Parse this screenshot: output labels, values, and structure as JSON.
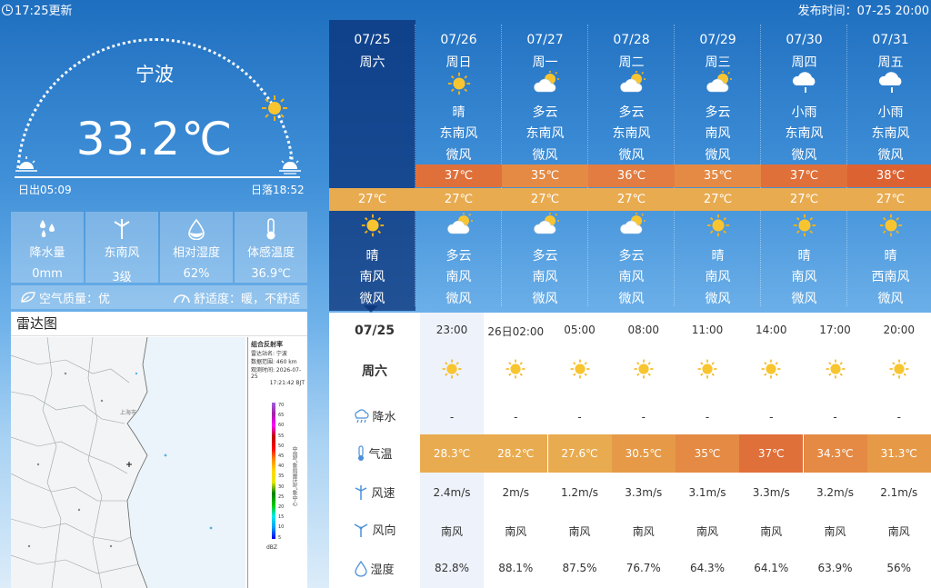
{
  "header": {
    "update_time": "17:25更新",
    "publish_time": "发布时间：07-25 20:00"
  },
  "current": {
    "city": "宁波",
    "temperature": "33.2℃",
    "sunrise": "日出05:09",
    "sunset": "日落18:52",
    "stats": [
      {
        "icon": "raindrops-icon",
        "label": "降水量",
        "value": "0mm"
      },
      {
        "icon": "wind-turbine-icon",
        "label": "东南风",
        "value": "3级"
      },
      {
        "icon": "humidity-drop-icon",
        "label": "相对湿度",
        "value": "62%"
      },
      {
        "icon": "thermometer-icon",
        "label": "体感温度",
        "value": "36.9℃"
      }
    ],
    "air_quality": "空气质量：优",
    "comfort": "舒适度：暖，不舒适"
  },
  "radar": {
    "title": "雷达图",
    "legend_title": "组合反射率",
    "station": "雷达站名:    宁波",
    "range": "数据范围:    460 km",
    "obs_time": "观测时间:    2026-07-25",
    "obs_time2": "17:21:42 BJT",
    "unit": "dBZ",
    "scale": [
      "70",
      "65",
      "60",
      "55",
      "50",
      "45",
      "40",
      "35",
      "30",
      "25",
      "20",
      "15",
      "10",
      "5"
    ],
    "vertical_note": "中国气象局雷达气象中心",
    "map_city": "上海市"
  },
  "daily": [
    {
      "date": "07/25",
      "weekday": "周六",
      "day_icon": "sunny-icon",
      "day_weather": "",
      "day_wind_dir": "",
      "day_wind_level": "",
      "high": "",
      "low": "27℃",
      "night_icon": "sunny-icon",
      "night_weather": "晴",
      "night_wind_dir": "南风",
      "night_wind_level": "微风",
      "today": true
    },
    {
      "date": "07/26",
      "weekday": "周日",
      "day_icon": "sunny-icon",
      "day_weather": "晴",
      "day_wind_dir": "东南风",
      "day_wind_level": "微风",
      "high": "37℃",
      "low": "27℃",
      "night_icon": "partly-cloudy-icon",
      "night_weather": "多云",
      "night_wind_dir": "南风",
      "night_wind_level": "微风",
      "high_color": "#e0703a"
    },
    {
      "date": "07/27",
      "weekday": "周一",
      "day_icon": "partly-cloudy-icon",
      "day_weather": "多云",
      "day_wind_dir": "东南风",
      "day_wind_level": "微风",
      "high": "35℃",
      "low": "27℃",
      "night_icon": "partly-cloudy-icon",
      "night_weather": "多云",
      "night_wind_dir": "南风",
      "night_wind_level": "微风",
      "high_color": "#e48a44"
    },
    {
      "date": "07/28",
      "weekday": "周二",
      "day_icon": "partly-cloudy-icon",
      "day_weather": "多云",
      "day_wind_dir": "东南风",
      "day_wind_level": "微风",
      "high": "36℃",
      "low": "27℃",
      "night_icon": "partly-cloudy-icon",
      "night_weather": "多云",
      "night_wind_dir": "南风",
      "night_wind_level": "微风",
      "high_color": "#e27c40"
    },
    {
      "date": "07/29",
      "weekday": "周三",
      "day_icon": "partly-cloudy-icon",
      "day_weather": "多云",
      "day_wind_dir": "南风",
      "day_wind_level": "微风",
      "high": "35℃",
      "low": "27℃",
      "night_icon": "sunny-icon",
      "night_weather": "晴",
      "night_wind_dir": "南风",
      "night_wind_level": "微风",
      "high_color": "#e48a44"
    },
    {
      "date": "07/30",
      "weekday": "周四",
      "day_icon": "light-rain-icon",
      "day_weather": "小雨",
      "day_wind_dir": "东南风",
      "day_wind_level": "微风",
      "high": "37℃",
      "low": "27℃",
      "night_icon": "sunny-icon",
      "night_weather": "晴",
      "night_wind_dir": "南风",
      "night_wind_level": "微风",
      "high_color": "#e0703a"
    },
    {
      "date": "07/31",
      "weekday": "周五",
      "day_icon": "light-rain-icon",
      "day_weather": "小雨",
      "day_wind_dir": "东南风",
      "day_wind_level": "微风",
      "high": "38℃",
      "low": "27℃",
      "night_icon": "sunny-icon",
      "night_weather": "晴",
      "night_wind_dir": "西南风",
      "night_wind_level": "微风",
      "high_color": "#dc6232"
    }
  ],
  "hourly": {
    "date": "07/25",
    "weekday": "周六",
    "row_labels": {
      "rain": "降水",
      "temp": "气温",
      "speed": "风速",
      "dir": "风向",
      "humidity": "湿度"
    },
    "columns": [
      {
        "time": "23:00",
        "icon": "sunny-icon",
        "rain": "-",
        "temp": "28.3℃",
        "temp_color": "#e9ab50",
        "speed": "2.4m/s",
        "dir": "南风",
        "humidity": "82.8%"
      },
      {
        "time": "26日02:00",
        "icon": "sunny-icon",
        "rain": "-",
        "temp": "28.2℃",
        "temp_color": "#e9ab50",
        "speed": "2m/s",
        "dir": "南风",
        "humidity": "88.1%"
      },
      {
        "time": "05:00",
        "icon": "sunny-icon",
        "rain": "-",
        "temp": "27.6℃",
        "temp_color": "#e9ab50",
        "speed": "1.2m/s",
        "dir": "南风",
        "humidity": "87.5%"
      },
      {
        "time": "08:00",
        "icon": "sunny-icon",
        "rain": "-",
        "temp": "30.5℃",
        "temp_color": "#e69a48",
        "speed": "3.3m/s",
        "dir": "南风",
        "humidity": "76.7%"
      },
      {
        "time": "11:00",
        "icon": "sunny-icon",
        "rain": "-",
        "temp": "35℃",
        "temp_color": "#e48a44",
        "speed": "3.1m/s",
        "dir": "南风",
        "humidity": "64.3%"
      },
      {
        "time": "14:00",
        "icon": "sunny-icon",
        "rain": "-",
        "temp": "37℃",
        "temp_color": "#e0703a",
        "speed": "3.3m/s",
        "dir": "南风",
        "humidity": "64.1%"
      },
      {
        "time": "17:00",
        "icon": "sunny-icon",
        "rain": "-",
        "temp": "34.3℃",
        "temp_color": "#e48a44",
        "speed": "3.2m/s",
        "dir": "南风",
        "humidity": "63.9%"
      },
      {
        "time": "20:00",
        "icon": "sunny-icon",
        "rain": "-",
        "temp": "31.3℃",
        "temp_color": "#e69a48",
        "speed": "2.1m/s",
        "dir": "南风",
        "humidity": "56%"
      }
    ]
  },
  "colors": {
    "accent_today": "#0a3278",
    "low_temp": "#e9ab50"
  }
}
